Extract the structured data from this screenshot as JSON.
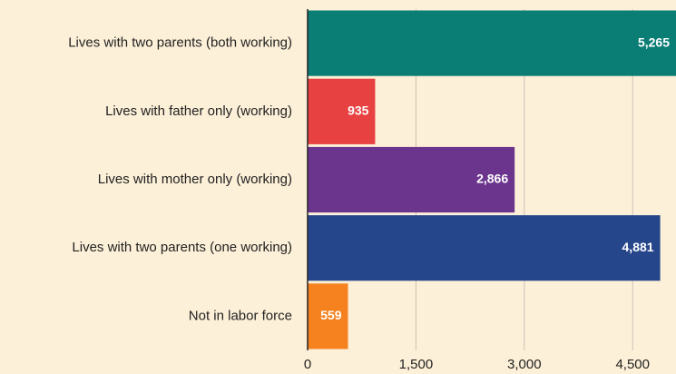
{
  "chart_data": {
    "type": "barh",
    "categories": [
      "Lives with two parents (both working)",
      "Lives with father only (working)",
      "Lives with mother only (working)",
      "Lives with two parents (one working)",
      "Not in labor force"
    ],
    "values": [
      5265,
      935,
      2866,
      4881,
      559
    ],
    "value_labels": [
      "5,265",
      "935",
      "2,866",
      "4,881",
      "559"
    ],
    "colors": [
      "#0a7d75",
      "#e84142",
      "#6b358e",
      "#26468b",
      "#f5821f"
    ],
    "xlim": [
      0,
      5100
    ],
    "xticks": [
      0,
      {
        "value": 1500,
        "label": "1,500"
      },
      {
        "value": 3000,
        "label": "3,000"
      },
      {
        "value": 4500,
        "label": "4,500"
      }
    ],
    "grid": true
  }
}
